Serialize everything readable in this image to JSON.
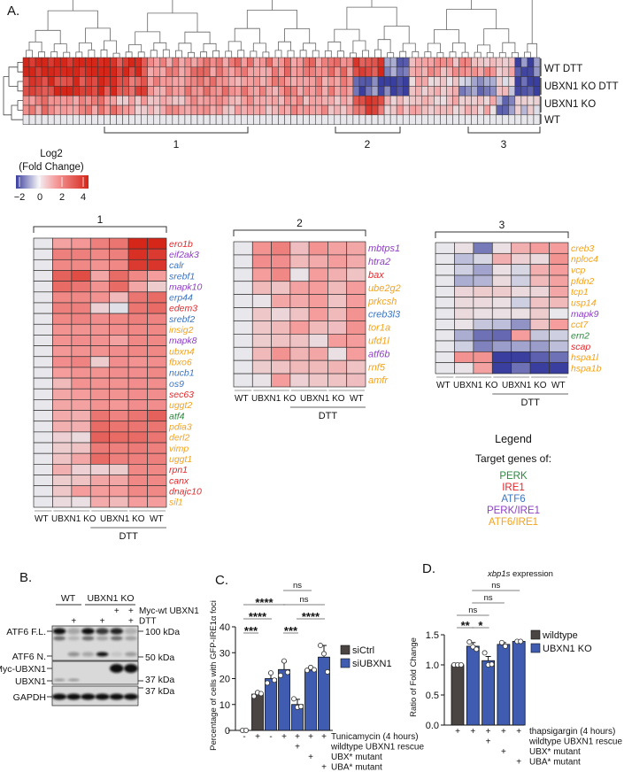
{
  "panel_labels": {
    "a": "A.",
    "b": "B.",
    "c": "C.",
    "d": "D."
  },
  "colors": {
    "PERK": "#2a8a3c",
    "IRE1": "#e3262a",
    "ATF6": "#3b74c2",
    "PERK/IRE1": "#8e3fc4",
    "ATF6/IRE1": "#f4a21c",
    "neg": "#3a3e9e",
    "zero": "#e8e8ec",
    "pos_mid": "#f59c9c",
    "pos_high": "#d5261a",
    "bar_ctrl": "#4a4443",
    "bar_ko": "#3f5cb0"
  },
  "overview": {
    "row_labels": [
      "WT  DTT",
      "UBXN1 KO DTT",
      "UBXN1 KO",
      "WT"
    ],
    "clusters": [
      "1",
      "2",
      "3"
    ]
  },
  "colorbar": {
    "title_line1": "Log2",
    "title_line2": "(Fold Change)",
    "ticks": [
      "−2",
      "0",
      "2",
      "4"
    ],
    "range": [
      -2,
      4.5
    ]
  },
  "heatmaps": [
    {
      "title": "1",
      "columns": [
        "WT",
        "UBXN1 KO",
        "UBXN1 KO",
        "UBXN1 KO",
        "UBXN1 KO",
        "WT",
        "WT"
      ],
      "bottom_labels": [
        "WT",
        "UBXN1 KO",
        "UBXN1 KO",
        "WT"
      ],
      "treatment": "DTT",
      "genes": [
        {
          "name": "ero1b",
          "target": "IRE1",
          "values": [
            0,
            1.5,
            1.7,
            2.2,
            2.4,
            4,
            4.2
          ]
        },
        {
          "name": "eif2ak3",
          "target": "PERK/IRE1",
          "values": [
            0,
            2.2,
            2.2,
            2,
            2.2,
            3.8,
            3.6
          ]
        },
        {
          "name": "calr",
          "target": "ATF6",
          "values": [
            0,
            2,
            2,
            1.8,
            2,
            3.6,
            3.7
          ]
        },
        {
          "name": "srebf1",
          "target": "ATF6",
          "values": [
            0,
            2.8,
            3.2,
            1.4,
            2.6,
            2,
            1.6
          ]
        },
        {
          "name": "mapk10",
          "target": "PERK/IRE1",
          "values": [
            0,
            2.6,
            2.4,
            1.8,
            2.6,
            1.4,
            0.6
          ]
        },
        {
          "name": "erp44",
          "target": "ATF6",
          "values": [
            0,
            2,
            2,
            1.8,
            1,
            2.4,
            2.6
          ]
        },
        {
          "name": "edem3",
          "target": "IRE1",
          "values": [
            0,
            2.2,
            2.2,
            0.5,
            -0.1,
            2.4,
            2.6
          ]
        },
        {
          "name": "srebf2",
          "target": "ATF6",
          "values": [
            0,
            2,
            2.1,
            1.9,
            2,
            2.2,
            2.1
          ]
        },
        {
          "name": "insig2",
          "target": "ATF6/IRE1",
          "values": [
            0,
            1.8,
            1.8,
            1.8,
            1.9,
            2,
            2
          ]
        },
        {
          "name": "mapk8",
          "target": "PERK/IRE1",
          "values": [
            0,
            1.8,
            1.9,
            1.8,
            1.5,
            2,
            2
          ]
        },
        {
          "name": "ubxn4",
          "target": "ATF6/IRE1",
          "values": [
            0,
            1.7,
            1.8,
            1.8,
            1.9,
            2,
            2
          ]
        },
        {
          "name": "fbxo6",
          "target": "ATF6/IRE1",
          "values": [
            0,
            1.9,
            2.1,
            0.6,
            1.9,
            1.8,
            1.9
          ]
        },
        {
          "name": "nucb1",
          "target": "ATF6",
          "values": [
            0,
            1.6,
            1.8,
            1.8,
            1.9,
            1.9,
            2
          ]
        },
        {
          "name": "os9",
          "target": "ATF6",
          "values": [
            0,
            1,
            1.8,
            1.8,
            1.8,
            1.9,
            1.9
          ]
        },
        {
          "name": "sec63",
          "target": "IRE1",
          "values": [
            0,
            1.4,
            1.6,
            1.8,
            1.8,
            1.9,
            1.9
          ]
        },
        {
          "name": "uggt2",
          "target": "ATF6/IRE1",
          "values": [
            0,
            1.4,
            1.5,
            1.8,
            1.7,
            1.9,
            1.9
          ]
        },
        {
          "name": "atf4",
          "target": "PERK",
          "values": [
            0,
            1.3,
            1.2,
            2.4,
            2.1,
            2.4,
            2.8
          ]
        },
        {
          "name": "pdia3",
          "target": "ATF6/IRE1",
          "values": [
            0,
            1.2,
            1.2,
            2.6,
            2.4,
            2.4,
            2.4
          ]
        },
        {
          "name": "derl2",
          "target": "ATF6/IRE1",
          "values": [
            0,
            0.5,
            0.3,
            2.8,
            2.6,
            2.6,
            2.4
          ]
        },
        {
          "name": "vimp",
          "target": "ATF6/IRE1",
          "values": [
            0,
            0.6,
            0.8,
            2.3,
            2.2,
            2.3,
            2.2
          ]
        },
        {
          "name": "uggt1",
          "target": "ATF6/IRE1",
          "values": [
            0,
            0.8,
            1.4,
            2.6,
            2.2,
            2.2,
            2.2
          ]
        },
        {
          "name": "rpn1",
          "target": "IRE1",
          "values": [
            0,
            1.2,
            0.5,
            0.5,
            0.6,
            2,
            2
          ]
        },
        {
          "name": "canx",
          "target": "IRE1",
          "values": [
            0,
            0.6,
            0.8,
            1.4,
            1.4,
            2,
            2
          ]
        },
        {
          "name": "dnajc10",
          "target": "IRE1",
          "values": [
            0,
            0.7,
            1.6,
            1.6,
            1.6,
            2,
            2
          ]
        },
        {
          "name": "sil1",
          "target": "ATF6/IRE1",
          "values": [
            0,
            0.3,
            0.2,
            1.3,
            1,
            1.6,
            1.6
          ]
        }
      ]
    },
    {
      "title": "2",
      "columns": [
        "WT",
        "UBXN1 KO",
        "UBXN1 KO",
        "UBXN1 KO",
        "UBXN1 KO",
        "WT",
        "WT"
      ],
      "bottom_labels": [
        "WT",
        "UBXN1 KO",
        "UBXN1 KO",
        "WT"
      ],
      "treatment": "DTT",
      "genes": [
        {
          "name": "mbtps1",
          "target": "PERK/IRE1",
          "values": [
            0,
            1.8,
            2.2,
            0.9,
            1.8,
            1.5,
            1.4
          ]
        },
        {
          "name": "htra2",
          "target": "PERK/IRE1",
          "values": [
            0,
            1.9,
            1.9,
            1,
            1.3,
            1.6,
            1.3
          ]
        },
        {
          "name": "bax",
          "target": "IRE1",
          "values": [
            0,
            1.6,
            2,
            0.1,
            1.6,
            1.2,
            0.8
          ]
        },
        {
          "name": "ube2g2",
          "target": "ATF6/IRE1",
          "values": [
            0,
            1,
            0.8,
            1.5,
            1.6,
            1,
            1.6
          ]
        },
        {
          "name": "prkcsh",
          "target": "ATF6/IRE1",
          "values": [
            0,
            0.1,
            1.4,
            1.3,
            1.6,
            0.8,
            1.6
          ]
        },
        {
          "name": "creb3l3",
          "target": "ATF6",
          "values": [
            0,
            0.7,
            0.4,
            0.8,
            1.6,
            1,
            1.8
          ]
        },
        {
          "name": "tor1a",
          "target": "ATF6/IRE1",
          "values": [
            0,
            0.7,
            1,
            1.6,
            1,
            0.9,
            1.8
          ]
        },
        {
          "name": "ufd1l",
          "target": "ATF6/IRE1",
          "values": [
            0,
            0.6,
            0.8,
            0.8,
            0.3,
            1.6,
            1.6
          ]
        },
        {
          "name": "atf6b",
          "target": "PERK/IRE1",
          "values": [
            0,
            1,
            1.8,
            1.1,
            1.4,
            0.2,
            1.6
          ]
        },
        {
          "name": "rnf5",
          "target": "ATF6/IRE1",
          "values": [
            0,
            0.6,
            0.8,
            1,
            1,
            1.1,
            0.8
          ]
        },
        {
          "name": "amfr",
          "target": "ATF6/IRE1",
          "values": [
            0,
            0.1,
            1.6,
            0.5,
            0.7,
            0.8,
            0.9
          ]
        }
      ]
    },
    {
      "title": "3",
      "columns": [
        "WT",
        "UBXN1 KO",
        "UBXN1 KO",
        "UBXN1 KO",
        "UBXN1 KO",
        "WT",
        "WT"
      ],
      "bottom_labels": [
        "WT",
        "UBXN1 KO",
        "UBXN1 KO",
        "WT"
      ],
      "treatment": "DTT",
      "genes": [
        {
          "name": "creb3",
          "target": "ATF6/IRE1",
          "values": [
            0,
            0.2,
            -1.3,
            0.2,
            1.2,
            1.6,
            1.6
          ]
        },
        {
          "name": "nploc4",
          "target": "ATF6/IRE1",
          "values": [
            0,
            -0.5,
            -0.2,
            1.2,
            0.5,
            0.3,
            1.8
          ]
        },
        {
          "name": "vcp",
          "target": "ATF6/IRE1",
          "values": [
            0,
            -0.3,
            -0.8,
            0.2,
            -0.2,
            1.2,
            1.6
          ]
        },
        {
          "name": "pfdn2",
          "target": "ATF6/IRE1",
          "values": [
            0,
            -0.7,
            -0.6,
            0.3,
            -0.3,
            1,
            1.5
          ]
        },
        {
          "name": "tcp1",
          "target": "ATF6/IRE1",
          "values": [
            0,
            0.4,
            0.6,
            0.6,
            0.3,
            0.4,
            1.4
          ]
        },
        {
          "name": "usp14",
          "target": "ATF6/IRE1",
          "values": [
            0,
            0.3,
            0.3,
            0.2,
            -0.3,
            0.8,
            1
          ]
        },
        {
          "name": "mapk9",
          "target": "PERK/IRE1",
          "values": [
            0,
            0.3,
            0.2,
            0.2,
            0.2,
            0.6,
            0
          ]
        },
        {
          "name": "cct7",
          "target": "ATF6/IRE1",
          "values": [
            0,
            0.1,
            -0.4,
            -0.5,
            -1,
            0.8,
            1.6
          ]
        },
        {
          "name": "ern2",
          "target": "PERK",
          "values": [
            0,
            -0.7,
            -1.4,
            -1.5,
            1.6,
            -0.4,
            -0.3
          ]
        },
        {
          "name": "scap",
          "target": "IRE1",
          "values": [
            0,
            -0.3,
            -1.2,
            -0.9,
            -0.8,
            -0.9,
            -0.5
          ]
        },
        {
          "name": "hspa1l",
          "target": "ATF6/IRE1",
          "values": [
            0,
            1.8,
            1.8,
            -2,
            -2,
            -1.6,
            -1.4
          ]
        },
        {
          "name": "hspa1b",
          "target": "ATF6/IRE1",
          "values": [
            0,
            0.1,
            1.5,
            -2,
            -1.4,
            -2,
            -2
          ]
        }
      ]
    }
  ],
  "legend": {
    "title": "Legend",
    "subtitle": "Target genes of:",
    "items": [
      {
        "label": "PERK",
        "key": "PERK"
      },
      {
        "label": "IRE1",
        "key": "IRE1"
      },
      {
        "label": "ATF6",
        "key": "ATF6"
      },
      {
        "label": "PERK/IRE1",
        "key": "PERK/IRE1"
      },
      {
        "label": "ATF6/IRE1",
        "key": "ATF6/IRE1"
      }
    ]
  },
  "blot": {
    "groups": [
      "WT",
      "UBXN1 KO"
    ],
    "conditions": [
      {
        "label": "Myc-wt UBXN1",
        "lanes": [
          "",
          "",
          "",
          "",
          "+",
          "+"
        ]
      },
      {
        "label": "DTT",
        "lanes": [
          "",
          "+",
          "",
          "+",
          "",
          "+"
        ]
      }
    ],
    "left_labels": [
      "ATF6 F.L.",
      "ATF6 N.",
      "Myc-UBXN1",
      "UBXN1",
      "GAPDH"
    ],
    "markers": [
      "100 kDa",
      "50 kDa",
      "37 kDa",
      "37 kDa"
    ]
  },
  "chart_data": [
    {
      "type": "bar",
      "panel": "C",
      "ylabel": "Percentage of cells with GFP-IRE1α foci",
      "ylim": [
        0,
        40
      ],
      "yticks": [
        "0",
        "10",
        "20",
        "30",
        "40"
      ],
      "legend": [
        {
          "label": "siCtrl",
          "color_key": "bar_ctrl"
        },
        {
          "label": "siUBXN1",
          "color_key": "bar_ko"
        }
      ],
      "legend_position": "right",
      "bars": [
        {
          "group": "siCtrl",
          "value": 0,
          "error": 0,
          "points": [
            0,
            0
          ]
        },
        {
          "group": "siCtrl",
          "value": 14,
          "error": 0.8,
          "points": [
            13.2,
            14.6,
            14.2
          ]
        },
        {
          "group": "siUBXN1",
          "value": 20,
          "error": 2.2,
          "points": [
            18.3,
            22.2,
            19.4
          ]
        },
        {
          "group": "siUBXN1",
          "value": 23.5,
          "error": 3,
          "points": [
            21.2,
            26.8,
            22.4
          ]
        },
        {
          "group": "siUBXN1",
          "value": 10,
          "error": 2,
          "points": [
            12.2,
            8.9,
            9.2
          ]
        },
        {
          "group": "siUBXN1",
          "value": 23.3,
          "error": 0.8,
          "points": [
            23.2,
            24.3,
            23.4
          ]
        },
        {
          "group": "siUBXN1",
          "value": 28.3,
          "error": 4.5,
          "points": [
            32.8,
            29.6,
            22.6
          ]
        }
      ],
      "conditions": [
        {
          "label": "Tunicamycin (4 hours)",
          "marks": [
            "-",
            "+",
            "-",
            "+",
            "+",
            "+",
            "+"
          ]
        },
        {
          "label": "wildtype UBXN1 rescue",
          "marks": [
            "",
            "",
            "",
            "",
            "+",
            "",
            ""
          ]
        },
        {
          "label": "UBX* mutant",
          "marks": [
            "",
            "",
            "",
            "",
            "",
            "+",
            ""
          ]
        },
        {
          "label": "UBA* mutant",
          "marks": [
            "",
            "",
            "",
            "",
            "",
            "",
            "+"
          ]
        }
      ],
      "significance": [
        {
          "label": "***",
          "from": 0,
          "to": 1,
          "level": 0
        },
        {
          "label": "****",
          "from": 0,
          "to": 2,
          "level": 1
        },
        {
          "label": "****",
          "from": 0,
          "to": 3,
          "level": 2
        },
        {
          "label": "***",
          "from": 3,
          "to": 4,
          "level": 0
        },
        {
          "label": "****",
          "from": 4,
          "to": 6,
          "level": 1
        },
        {
          "label": "ns",
          "from": 3,
          "to": 6,
          "level": 2
        },
        {
          "label": "ns",
          "from": 3,
          "to": 5,
          "level": 3
        }
      ]
    },
    {
      "type": "bar",
      "panel": "D",
      "title": "xbp1s",
      "title_suffix": " expression",
      "ylabel": "Ratio of Fold Change",
      "ylim": [
        0,
        1.5
      ],
      "yticks": [
        "0.0",
        "0.5",
        "1.0",
        "1.5"
      ],
      "legend": [
        {
          "label": "wildtype",
          "color_key": "bar_ctrl"
        },
        {
          "label": "UBXN1 KO",
          "color_key": "bar_ko"
        }
      ],
      "legend_position": "right",
      "bars": [
        {
          "group": "wildtype",
          "value": 1.0,
          "error": 0,
          "points": [
            1.0,
            1.0,
            1.0
          ]
        },
        {
          "group": "UBXN1 KO",
          "value": 1.31,
          "error": 0.06,
          "points": [
            1.38,
            1.3,
            1.26
          ]
        },
        {
          "group": "UBXN1 KO",
          "value": 1.07,
          "error": 0.07,
          "points": [
            1.2,
            1.0,
            1.01
          ]
        },
        {
          "group": "UBXN1 KO",
          "value": 1.34,
          "error": 0.03,
          "points": [
            1.37,
            1.31
          ]
        },
        {
          "group": "UBXN1 KO",
          "value": 1.39,
          "error": 0,
          "points": [
            1.39,
            1.39
          ]
        }
      ],
      "conditions": [
        {
          "label": "thapsigargin (4 hours)",
          "marks": [
            "+",
            "+",
            "+",
            "+",
            "+"
          ]
        },
        {
          "label": "wildtype UBXN1 rescue",
          "marks": [
            "",
            "",
            "+",
            "",
            ""
          ]
        },
        {
          "label": "UBX* mutant",
          "marks": [
            "",
            "",
            "",
            "+",
            ""
          ]
        },
        {
          "label": "UBA* mutant",
          "marks": [
            "",
            "",
            "",
            "",
            "+"
          ]
        }
      ],
      "significance": [
        {
          "label": "**",
          "from": 0,
          "to": 1,
          "level": 0
        },
        {
          "label": "*",
          "from": 1,
          "to": 2,
          "level": 0
        },
        {
          "label": "ns",
          "from": 0,
          "to": 2,
          "level": 1
        },
        {
          "label": "ns",
          "from": 1,
          "to": 3,
          "level": 2
        },
        {
          "label": "ns",
          "from": 1,
          "to": 4,
          "level": 3
        }
      ]
    }
  ]
}
